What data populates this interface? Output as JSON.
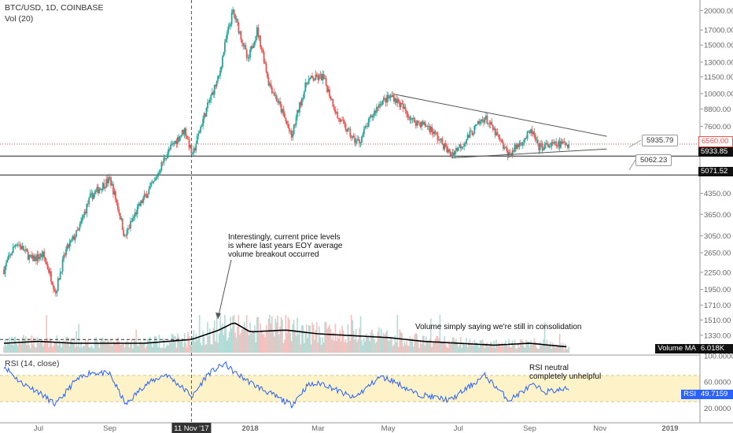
{
  "chart_data": {
    "type": "candlestick",
    "header": {
      "symbol_line": "BTC/USD, 1D, COINBASE",
      "volume_line": "Vol (20)"
    },
    "x_ticks": [
      "Jul",
      "Sep",
      "11 Nov '17",
      "2018",
      "Mar",
      "May",
      "Jul",
      "Sep",
      "Nov",
      "2019"
    ],
    "price_axis": {
      "scale": "log",
      "ticks": [
        "20000.00",
        "17000.00",
        "15000.00",
        "13000.00",
        "11500.00",
        "10000.00",
        "8800.00",
        "7600.00",
        "6560.00",
        "5933.85",
        "5071.52",
        "4350.00",
        "3650.00",
        "3050.00",
        "2650.00",
        "2250.00",
        "1950.00",
        "1710.00",
        "1510.00",
        "1330.00"
      ],
      "range": [
        1150,
        21000
      ]
    },
    "price_path": [
      [
        "2017-06-01",
        2300
      ],
      [
        "2017-06-12",
        2900
      ],
      [
        "2017-06-25",
        2500
      ],
      [
        "2017-07-05",
        2600
      ],
      [
        "2017-07-16",
        1900
      ],
      [
        "2017-07-25",
        2700
      ],
      [
        "2017-08-05",
        3200
      ],
      [
        "2017-08-15",
        4200
      ],
      [
        "2017-09-01",
        4900
      ],
      [
        "2017-09-14",
        3000
      ],
      [
        "2017-09-25",
        3800
      ],
      [
        "2017-10-10",
        4800
      ],
      [
        "2017-10-20",
        6000
      ],
      [
        "2017-11-05",
        7400
      ],
      [
        "2017-11-12",
        5900
      ],
      [
        "2017-11-25",
        9000
      ],
      [
        "2017-12-05",
        11500
      ],
      [
        "2017-12-17",
        19800
      ],
      [
        "2017-12-30",
        13000
      ],
      [
        "2018-01-07",
        17000
      ],
      [
        "2018-01-17",
        11000
      ],
      [
        "2018-02-06",
        6900
      ],
      [
        "2018-02-20",
        11200
      ],
      [
        "2018-03-05",
        11500
      ],
      [
        "2018-03-18",
        8200
      ],
      [
        "2018-04-01",
        6800
      ],
      [
        "2018-04-06",
        6700
      ],
      [
        "2018-04-24",
        9300
      ],
      [
        "2018-05-05",
        9800
      ],
      [
        "2018-05-22",
        8000
      ],
      [
        "2018-06-05",
        7600
      ],
      [
        "2018-06-24",
        6000
      ],
      [
        "2018-07-05",
        6600
      ],
      [
        "2018-07-24",
        8200
      ],
      [
        "2018-08-10",
        6300
      ],
      [
        "2018-08-14",
        6000
      ],
      [
        "2018-09-03",
        7300
      ],
      [
        "2018-09-08",
        6400
      ],
      [
        "2018-09-20",
        6500
      ],
      [
        "2018-10-05",
        6600
      ]
    ],
    "horizontal_levels": [
      {
        "label": "5933.85",
        "value": 5933.85,
        "color": "#222222"
      },
      {
        "label": "5071.52",
        "value": 5071.52,
        "color": "#222222"
      },
      {
        "label": "6560.00",
        "value": 6560.0,
        "color": "#ef5350"
      }
    ],
    "trendlines": [
      {
        "from": [
          "2018-05-06",
          9950
        ],
        "to": [
          "2018-11-07",
          7000
        ]
      },
      {
        "from": [
          "2018-06-25",
          5850
        ],
        "to": [
          "2018-11-07",
          6300
        ]
      }
    ],
    "callouts": [
      "5935.79",
      "5062.23"
    ],
    "annotations": {
      "breakout_note": [
        "Interestingly, current price levels",
        "is where last years EOY average",
        "volume breakout occurred"
      ],
      "volume_note": "Volume simply saying we're still in consolidation",
      "rsi_note": [
        "RSI neutral",
        "completely unhelpful"
      ]
    },
    "volume": {
      "label": "Volume MA",
      "value": "6.018K",
      "ma_path": [
        [
          "2017-06-01",
          5
        ],
        [
          "2017-07-01",
          6
        ],
        [
          "2017-08-01",
          5
        ],
        [
          "2017-09-01",
          5
        ],
        [
          "2017-10-01",
          5
        ],
        [
          "2017-11-11",
          7
        ],
        [
          "2017-12-05",
          12
        ],
        [
          "2017-12-18",
          16
        ],
        [
          "2018-01-01",
          11
        ],
        [
          "2018-02-01",
          12
        ],
        [
          "2018-03-01",
          10
        ],
        [
          "2018-04-01",
          9
        ],
        [
          "2018-05-01",
          8
        ],
        [
          "2018-06-01",
          6
        ],
        [
          "2018-07-01",
          5
        ],
        [
          "2018-08-01",
          4
        ],
        [
          "2018-09-01",
          5
        ],
        [
          "2018-10-05",
          3
        ]
      ]
    },
    "rsi": {
      "label": "RSI (14, close)",
      "current_label": "RSI",
      "current_value": "49.7159",
      "ticks": [
        "100.0000",
        "60.0000",
        "20.0000"
      ],
      "band": [
        30,
        70
      ],
      "path": [
        [
          "2017-06-01",
          85
        ],
        [
          "2017-06-15",
          60
        ],
        [
          "2017-07-01",
          45
        ],
        [
          "2017-07-16",
          25
        ],
        [
          "2017-08-01",
          60
        ],
        [
          "2017-08-15",
          75
        ],
        [
          "2017-09-01",
          72
        ],
        [
          "2017-09-15",
          25
        ],
        [
          "2017-10-01",
          55
        ],
        [
          "2017-10-20",
          72
        ],
        [
          "2017-11-12",
          38
        ],
        [
          "2017-11-25",
          72
        ],
        [
          "2017-12-10",
          88
        ],
        [
          "2017-12-18",
          75
        ],
        [
          "2018-01-05",
          55
        ],
        [
          "2018-02-06",
          25
        ],
        [
          "2018-02-20",
          55
        ],
        [
          "2018-03-05",
          58
        ],
        [
          "2018-04-01",
          35
        ],
        [
          "2018-04-24",
          68
        ],
        [
          "2018-05-05",
          62
        ],
        [
          "2018-05-25",
          42
        ],
        [
          "2018-06-24",
          32
        ],
        [
          "2018-07-24",
          70
        ],
        [
          "2018-08-14",
          32
        ],
        [
          "2018-09-03",
          55
        ],
        [
          "2018-09-15",
          45
        ],
        [
          "2018-10-05",
          49.7
        ]
      ]
    },
    "colors": {
      "up": "#26a69a",
      "down": "#ef5350",
      "rsi_line": "#2962ff",
      "rsi_band": "#fdf2c8",
      "axis": "#666666"
    }
  }
}
